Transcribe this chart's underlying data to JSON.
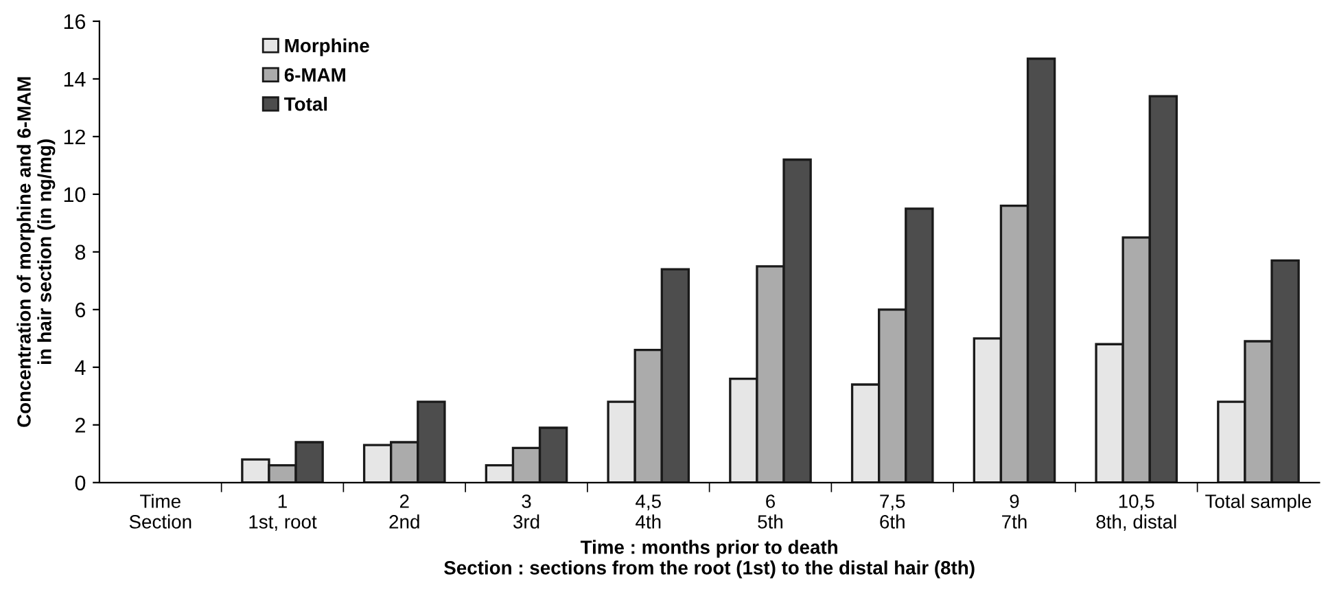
{
  "chart_data": {
    "type": "bar",
    "categories": [
      "Time\nSection",
      "1\n1st, root",
      "2\n2nd",
      "3\n3rd",
      "4,5\n4th",
      "6\n5th",
      "7,5\n6th",
      "9\n7th",
      "10,5\n8th, distal",
      "Total sample"
    ],
    "series": [
      {
        "name": "Morphine",
        "color": "#e6e6e6",
        "values": [
          null,
          0.8,
          1.3,
          0.6,
          2.8,
          3.6,
          3.4,
          5.0,
          4.8,
          2.8
        ]
      },
      {
        "name": "6-MAM",
        "color": "#ababab",
        "values": [
          null,
          0.6,
          1.4,
          1.2,
          4.6,
          7.5,
          6.0,
          9.6,
          8.5,
          4.9
        ]
      },
      {
        "name": "Total",
        "color": "#4d4d4d",
        "values": [
          null,
          1.4,
          2.8,
          1.9,
          7.4,
          11.2,
          9.5,
          14.7,
          13.4,
          7.7
        ]
      }
    ],
    "xlabel": "Time : months prior to death\nSection : sections from the root (1st) to the distal hair (8th)",
    "ylabel": "Concentration of morphine and 6-MAM\nin hair section (in ng/mg)",
    "ylim": [
      0,
      16
    ],
    "yticks": [
      0,
      2,
      4,
      6,
      8,
      10,
      12,
      14,
      16
    ],
    "legend": "top left",
    "grid": false
  }
}
